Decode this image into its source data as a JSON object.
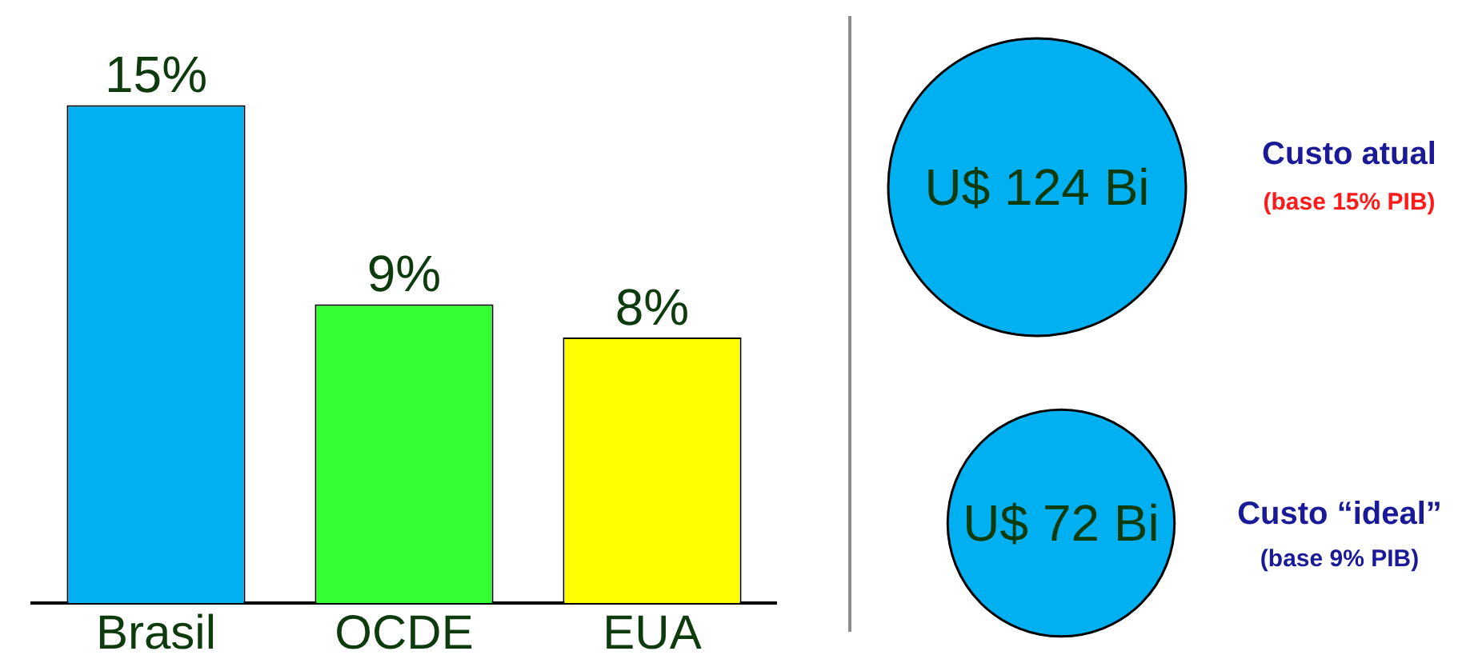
{
  "chart_data": [
    {
      "type": "bar",
      "categories": [
        "Brasil",
        "OCDE",
        "EUA"
      ],
      "values": [
        15,
        9,
        8
      ],
      "colors": [
        "#00b0f0",
        "#33ff33",
        "#ffff00"
      ],
      "data_labels": true,
      "value_labels": [
        "15%",
        "9%",
        "8%"
      ]
    },
    {
      "type": "other",
      "values": [
        124,
        72
      ],
      "value_labels": [
        "U$ 124 Bi",
        "U$ 72 Bi"
      ],
      "color": "#00b0f0",
      "annotations": [
        "Custo atual",
        "(base 15% PIB)",
        "Custo “ideal”",
        "(base 9% PIB)"
      ]
    }
  ]
}
